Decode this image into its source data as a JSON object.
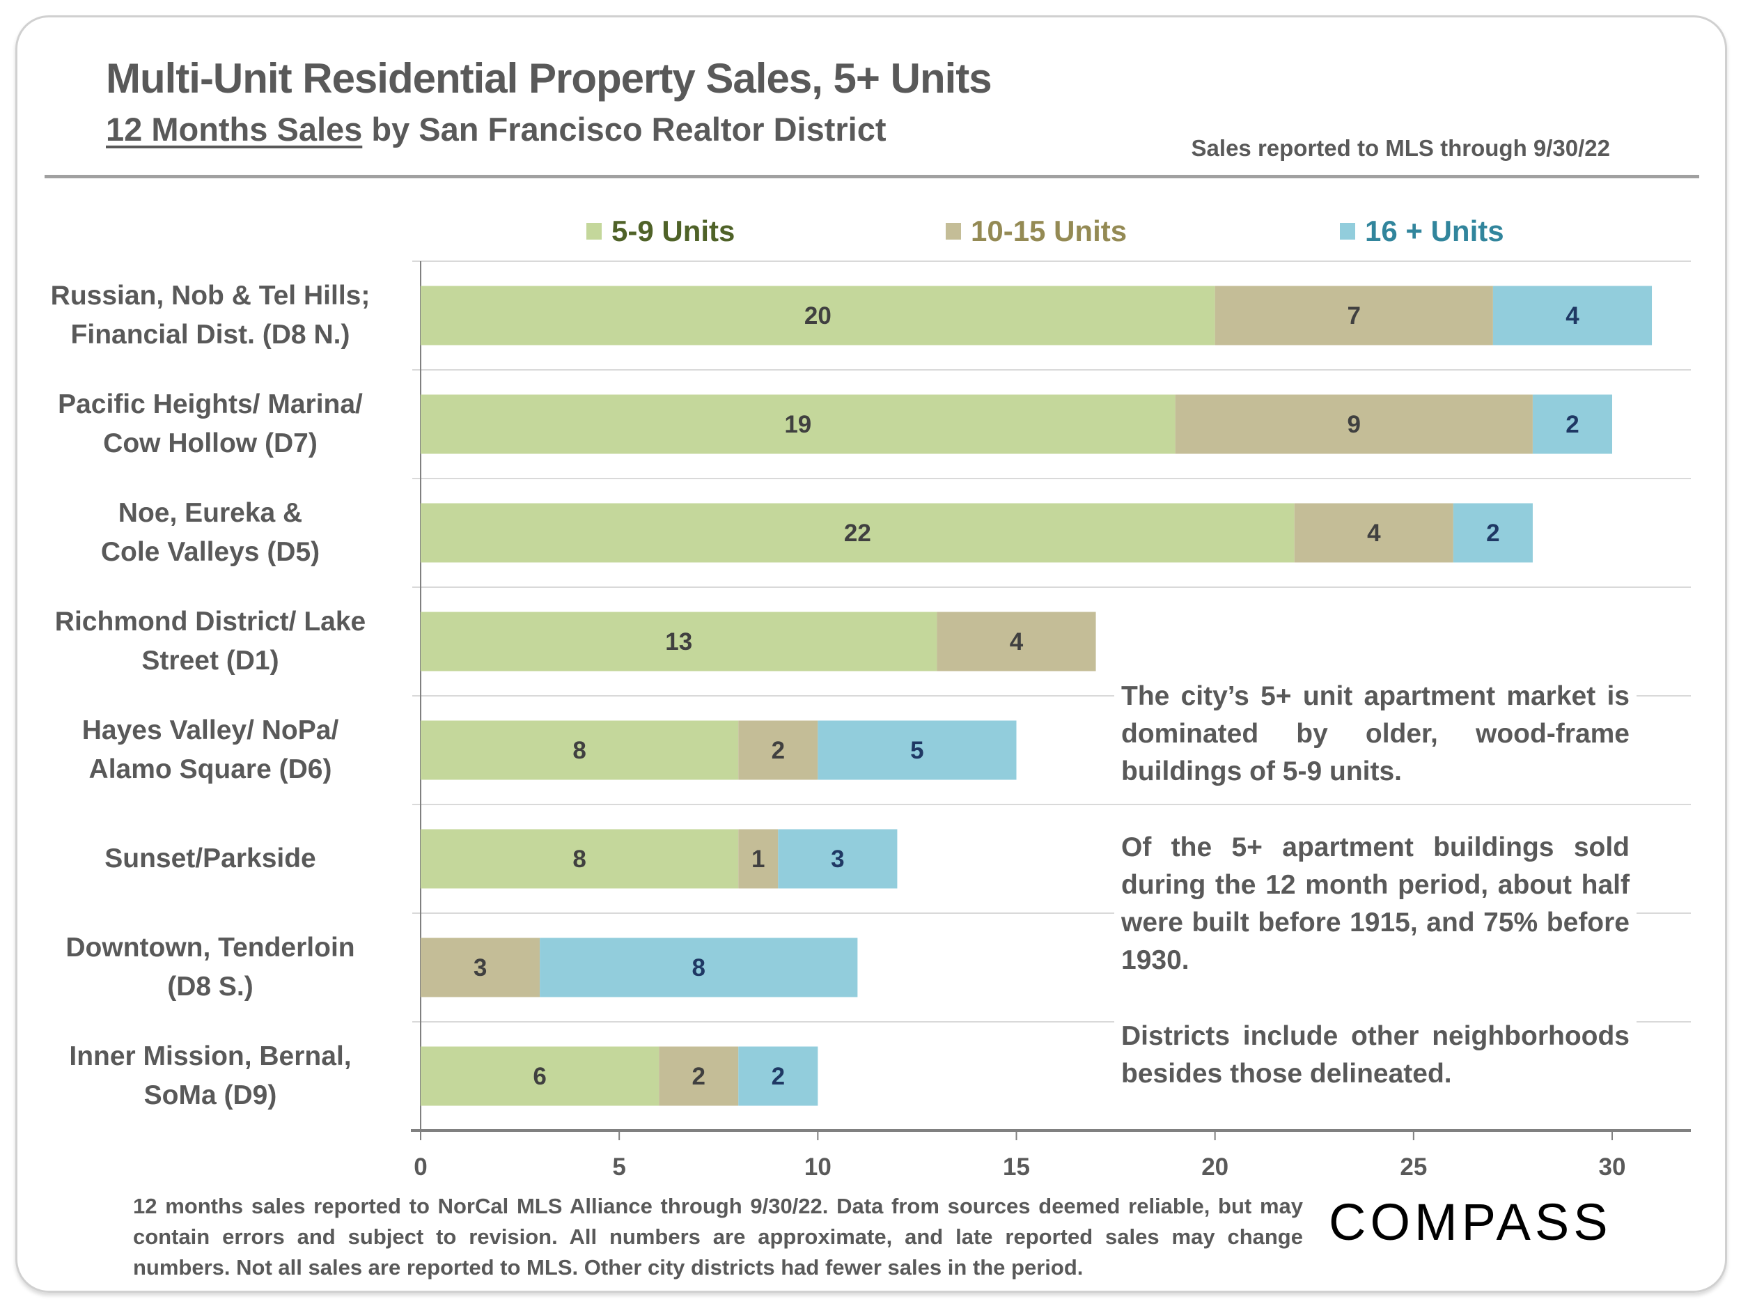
{
  "header": {
    "title": "Multi-Unit Residential Property Sales, 5+ Units",
    "subtitle_underlined": "12 Months Sales",
    "subtitle_rest": " by San Francisco Realtor District",
    "note": "Sales reported to MLS through 9/30/22"
  },
  "chart_data": {
    "type": "bar",
    "orientation": "horizontal-stacked",
    "title": "Multi-Unit Residential Property Sales, 5+ Units",
    "categories": [
      [
        "Russian, Nob & Tel Hills;",
        "Financial Dist. (D8 N.)"
      ],
      [
        "Pacific Heights/ Marina/",
        "Cow Hollow (D7)"
      ],
      [
        "Noe, Eureka &",
        "Cole Valleys (D5)"
      ],
      [
        "Richmond District/ Lake",
        "Street (D1)"
      ],
      [
        "Hayes Valley/ NoPa/",
        "Alamo Square (D6)"
      ],
      [
        "Sunset/Parkside"
      ],
      [
        "Downtown, Tenderloin",
        "(D8 S.)"
      ],
      [
        "Inner Mission, Bernal,",
        "SoMa (D9)"
      ]
    ],
    "series": [
      {
        "name": "5-9 Units",
        "color": "#c4d79b",
        "text_color": "#4f6228",
        "values": [
          20,
          19,
          22,
          13,
          8,
          8,
          0,
          6
        ]
      },
      {
        "name": "10-15 Units",
        "color": "#c4bd97",
        "text_color": "#948a54",
        "values": [
          7,
          9,
          4,
          4,
          2,
          1,
          3,
          2
        ]
      },
      {
        "name": "16 + Units",
        "color": "#92cddc",
        "text_color": "#31859c",
        "values": [
          4,
          2,
          2,
          0,
          5,
          3,
          8,
          2
        ]
      }
    ],
    "xlim": [
      0,
      30
    ],
    "xticks": [
      "0",
      "5",
      "10",
      "15",
      "20",
      "25",
      "30"
    ],
    "legend": "top"
  },
  "annotations": [
    "The city’s 5+ unit apartment market is dominated by older, wood-frame buildings of 5-9 units.",
    "Of the 5+ apartment buildings sold during the 12 month period, about half were built before 1915, and 75% before 1930.",
    "Districts include other neighborhoods besides those delineated."
  ],
  "footnote": "12 months sales reported to NorCal MLS Alliance through 9/30/22. Data from sources deemed reliable, but may contain errors and subject to revision. All numbers are approximate, and late reported sales may change numbers. Not all sales are reported to MLS. Other city districts had fewer sales in the period.",
  "logo": "COMPASS"
}
